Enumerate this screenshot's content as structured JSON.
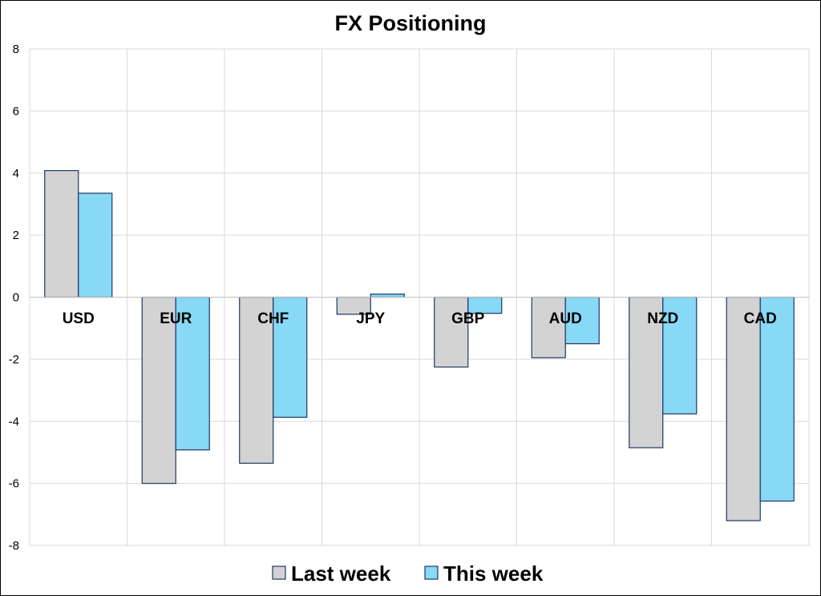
{
  "chart_data": {
    "type": "bar",
    "title": "FX Positioning",
    "categories": [
      "USD",
      "EUR",
      "CHF",
      "JPY",
      "GBP",
      "AUD",
      "NZD",
      "CAD"
    ],
    "series": [
      {
        "name": "Last week",
        "color": "#d3d3d3",
        "values": [
          4.08,
          -6.0,
          -5.35,
          -0.55,
          -2.25,
          -1.95,
          -4.85,
          -7.2
        ]
      },
      {
        "name": "This week",
        "color": "#87d9f5",
        "values": [
          3.35,
          -4.92,
          -3.87,
          0.1,
          -0.52,
          -1.5,
          -3.76,
          -6.57
        ]
      }
    ],
    "ylim": [
      -8,
      8
    ],
    "yticks": [
      "-8",
      "-6",
      "-4",
      "-2",
      "0",
      "2",
      "4",
      "6",
      "8"
    ],
    "grid": true,
    "legend_position": "bottom"
  }
}
